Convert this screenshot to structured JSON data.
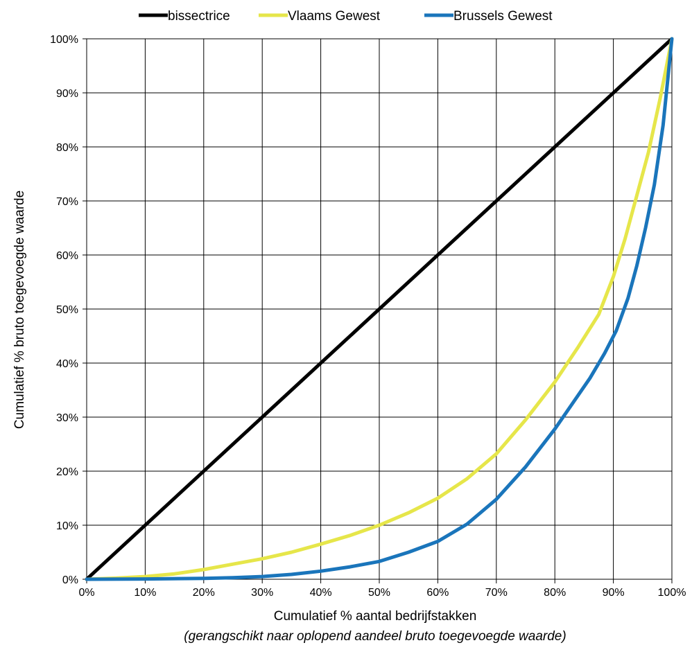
{
  "chart_data": {
    "type": "line",
    "title": "",
    "xlabel": "Cumulatief % aantal bedrijfstakken",
    "xlabel_sub": "(gerangschikt naar oplopend aandeel bruto toegevoegde waarde)",
    "ylabel": "Cumulatief % bruto toegevoegde waarde",
    "xlim": [
      0,
      100
    ],
    "ylim": [
      0,
      100
    ],
    "x_ticks": [
      "0%",
      "10%",
      "20%",
      "30%",
      "40%",
      "50%",
      "60%",
      "70%",
      "80%",
      "90%",
      "100%"
    ],
    "y_ticks": [
      "0%",
      "10%",
      "20%",
      "30%",
      "40%",
      "50%",
      "60%",
      "70%",
      "80%",
      "90%",
      "100%"
    ],
    "grid": true,
    "legend_position": "top",
    "series": [
      {
        "name": "bissectrice",
        "color": "#000000",
        "x": [
          0,
          100
        ],
        "y": [
          0,
          100
        ]
      },
      {
        "name": "Vlaams Gewest",
        "color": "#e6e64a",
        "x": [
          0,
          5,
          10,
          15,
          20,
          25,
          30,
          35,
          40,
          45,
          50,
          55,
          60,
          65,
          70,
          75,
          80,
          84,
          87.5,
          90,
          92,
          94,
          96,
          98,
          100
        ],
        "y": [
          0,
          0.2,
          0.5,
          1.0,
          1.8,
          2.8,
          3.8,
          5.0,
          6.5,
          8.1,
          10.0,
          12.3,
          15.0,
          18.6,
          23.2,
          29.5,
          36.5,
          43.0,
          49.0,
          56.0,
          63.0,
          71.0,
          79.0,
          89.0,
          100
        ]
      },
      {
        "name": "Brussels Gewest",
        "color": "#1a75bb",
        "x": [
          0,
          10,
          20,
          25,
          30,
          35,
          40,
          45,
          50,
          55,
          60,
          65,
          70,
          75,
          80,
          83,
          86,
          88.5,
          90.5,
          92.5,
          94,
          95.5,
          97,
          98.5,
          100
        ],
        "y": [
          0,
          0.05,
          0.15,
          0.3,
          0.5,
          0.9,
          1.5,
          2.3,
          3.3,
          5.0,
          7.0,
          10.2,
          14.8,
          20.8,
          27.8,
          32.5,
          37.2,
          41.8,
          46.0,
          52.0,
          58.0,
          65.0,
          73.0,
          84.0,
          100
        ]
      }
    ]
  }
}
